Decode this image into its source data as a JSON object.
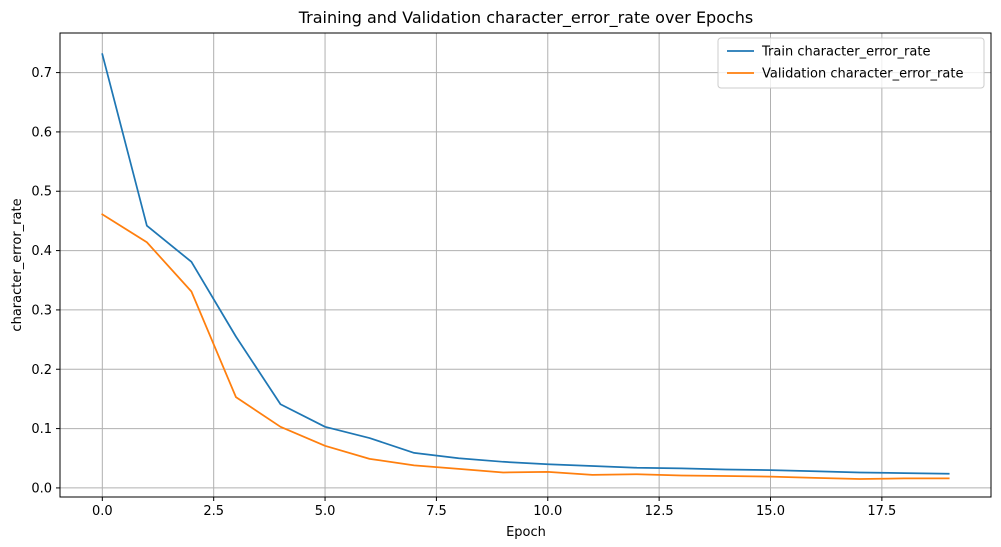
{
  "chart_data": {
    "type": "line",
    "title": "Training and Validation character_error_rate over Epochs",
    "xlabel": "Epoch",
    "ylabel": "character_error_rate",
    "xlim": [
      -0.95,
      19.95
    ],
    "ylim": [
      -0.0153,
      0.7667
    ],
    "x_ticks": [
      0,
      2.5,
      5,
      7.5,
      10,
      12.5,
      15,
      17.5
    ],
    "x_tick_labels": [
      "0.0",
      "2.5",
      "5.0",
      "7.5",
      "10.0",
      "12.5",
      "15.0",
      "17.5"
    ],
    "y_ticks": [
      0,
      0.1,
      0.2,
      0.3,
      0.4,
      0.5,
      0.6,
      0.7
    ],
    "y_tick_labels": [
      "0.0",
      "0.1",
      "0.2",
      "0.3",
      "0.4",
      "0.5",
      "0.6",
      "0.7"
    ],
    "grid": true,
    "legend_position": "top-right",
    "x": [
      0,
      1,
      2,
      3,
      4,
      5,
      6,
      7,
      8,
      9,
      10,
      11,
      12,
      13,
      14,
      15,
      16,
      17,
      18,
      19
    ],
    "series": [
      {
        "name": "Train character_error_rate",
        "color": "#1f77b4",
        "values": [
          0.731,
          0.442,
          0.381,
          0.255,
          0.141,
          0.103,
          0.084,
          0.059,
          0.05,
          0.044,
          0.04,
          0.037,
          0.034,
          0.033,
          0.031,
          0.03,
          0.028,
          0.026,
          0.025,
          0.024
        ]
      },
      {
        "name": "Validation character_error_rate",
        "color": "#ff7f0e",
        "values": [
          0.461,
          0.414,
          0.331,
          0.153,
          0.103,
          0.071,
          0.049,
          0.038,
          0.032,
          0.026,
          0.027,
          0.022,
          0.023,
          0.021,
          0.02,
          0.019,
          0.017,
          0.015,
          0.016,
          0.016
        ]
      }
    ]
  }
}
